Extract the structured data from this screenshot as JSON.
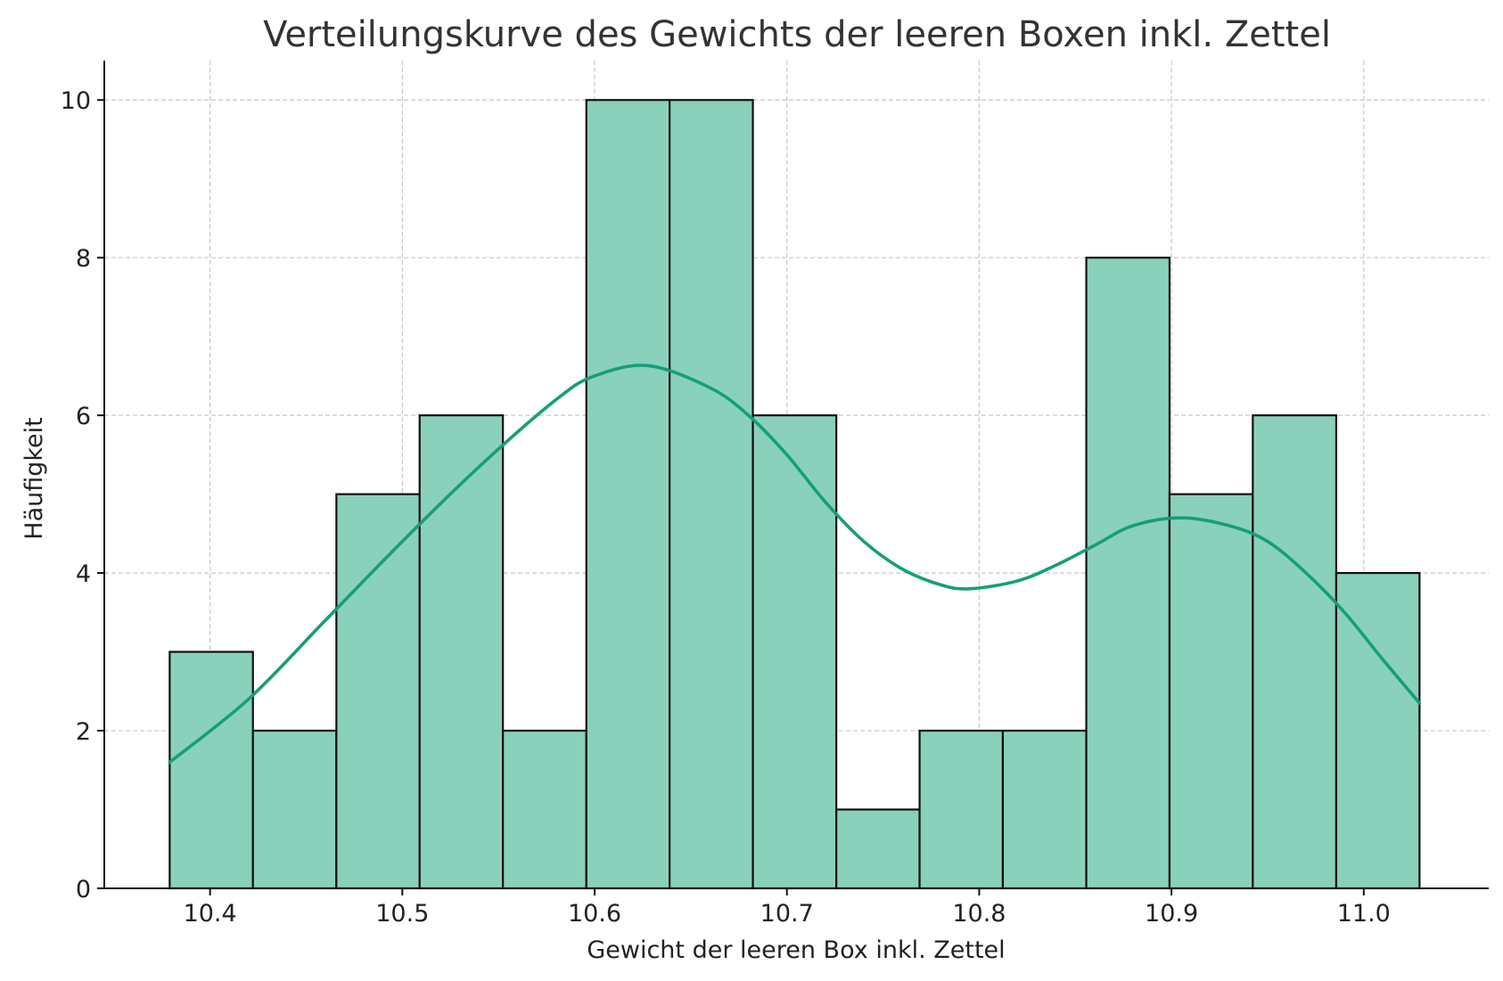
{
  "chart_data": {
    "type": "bar",
    "title": "Verteilungskurve des Gewichts der leeren Boxen inkl. Zettel",
    "xlabel": "Gewicht der leeren Box inkl. Zettel",
    "ylabel": "Häufigkeit",
    "xlim": [
      10.345,
      11.065
    ],
    "ylim": [
      0,
      10.5
    ],
    "xticks": [
      10.4,
      10.5,
      10.6,
      10.7,
      10.8,
      10.9,
      11.0
    ],
    "xtick_labels": [
      "10.4",
      "10.5",
      "10.6",
      "10.7",
      "10.8",
      "10.9",
      "11.0"
    ],
    "yticks": [
      0,
      2,
      4,
      6,
      8,
      10
    ],
    "ytick_labels": [
      "0",
      "2",
      "4",
      "6",
      "8",
      "10"
    ],
    "grid": true,
    "bins": {
      "edges": [
        10.379,
        10.4223,
        10.4657,
        10.509,
        10.5523,
        10.5957,
        10.639,
        10.6823,
        10.7257,
        10.769,
        10.8123,
        10.8557,
        10.899,
        10.9423,
        10.9857,
        11.029
      ],
      "counts": [
        3,
        2,
        5,
        6,
        2,
        10,
        10,
        6,
        1,
        2,
        2,
        8,
        5,
        6,
        4
      ]
    },
    "kde": {
      "x": [
        10.379,
        10.42,
        10.46,
        10.5,
        10.54,
        10.58,
        10.6,
        10.628,
        10.66,
        10.68,
        10.7,
        10.72,
        10.74,
        10.76,
        10.78,
        10.795,
        10.82,
        10.84,
        10.86,
        10.88,
        10.905,
        10.93,
        10.95,
        10.97,
        10.99,
        11.01,
        11.029
      ],
      "y": [
        1.6,
        2.4,
        3.4,
        4.4,
        5.35,
        6.2,
        6.5,
        6.63,
        6.35,
        6.0,
        5.5,
        4.9,
        4.4,
        4.05,
        3.85,
        3.8,
        3.9,
        4.1,
        4.35,
        4.6,
        4.7,
        4.6,
        4.4,
        4.0,
        3.5,
        2.9,
        2.35
      ]
    },
    "colors": {
      "bar_fill": "#89d1bb",
      "bar_edge": "#111111",
      "kde_line": "#169e7a"
    }
  }
}
